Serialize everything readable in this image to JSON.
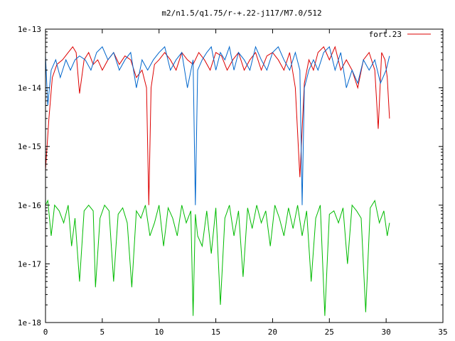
{
  "chart_data": {
    "type": "line",
    "title": "m2/n1.5/q1.75/r-+.22-j117/M7.0/512",
    "xlabel": "",
    "ylabel": "",
    "xlim": [
      0,
      35
    ],
    "ylim": [
      1e-18,
      1e-13
    ],
    "y_scale": "log",
    "x_ticks": [
      0,
      5,
      10,
      15,
      20,
      25,
      30,
      35
    ],
    "y_ticks": [
      {
        "value": 1e-18,
        "label": "1e-18"
      },
      {
        "value": 1e-17,
        "label": "1e-17"
      },
      {
        "value": 1e-16,
        "label": "1e-16"
      },
      {
        "value": 1e-15,
        "label": "1e-15"
      },
      {
        "value": 1e-14,
        "label": "1e-14"
      },
      {
        "value": 1e-13,
        "label": "1e-13"
      }
    ],
    "grid": false,
    "legend_position": "top-right",
    "series": [
      {
        "name": "fort.23",
        "color": "#dd0000",
        "x": [
          0.0,
          0.3,
          0.6,
          1.0,
          1.5,
          2.0,
          2.4,
          2.7,
          3.0,
          3.4,
          3.8,
          4.2,
          4.6,
          5.0,
          5.5,
          6.0,
          6.5,
          7.0,
          7.5,
          8.0,
          8.5,
          8.9,
          9.1,
          9.3,
          9.6,
          10.0,
          10.5,
          11.0,
          11.5,
          12.0,
          12.5,
          13.0,
          13.5,
          14.0,
          14.5,
          15.0,
          15.5,
          16.0,
          16.5,
          17.0,
          17.5,
          18.0,
          18.5,
          19.0,
          19.5,
          20.0,
          20.5,
          21.0,
          21.5,
          22.0,
          22.4,
          22.6,
          22.8,
          23.2,
          23.6,
          24.0,
          24.5,
          25.0,
          25.5,
          26.0,
          26.5,
          27.0,
          27.5,
          28.0,
          28.5,
          29.0,
          29.3,
          29.6,
          29.9,
          30.1,
          30.3
        ],
        "values": [
          4e-16,
          3e-15,
          1.5e-14,
          2.5e-14,
          3e-14,
          4e-14,
          5e-14,
          4e-14,
          8e-15,
          3e-14,
          4e-14,
          2.5e-14,
          3e-14,
          2e-14,
          3e-14,
          4e-14,
          2.5e-14,
          3.5e-14,
          3e-14,
          1.5e-14,
          2e-14,
          1e-14,
          1e-16,
          1e-14,
          2.5e-14,
          3e-14,
          4e-14,
          3e-14,
          2e-14,
          4e-14,
          3e-14,
          2.5e-14,
          4e-14,
          3e-14,
          2e-14,
          4e-14,
          3.5e-14,
          2e-14,
          3e-14,
          4e-14,
          2e-14,
          3e-14,
          4e-14,
          2e-14,
          3.5e-14,
          4e-14,
          3e-14,
          2e-14,
          4e-14,
          1e-14,
          3e-16,
          2e-15,
          1.2e-14,
          3e-14,
          2e-14,
          4e-14,
          5e-14,
          3e-14,
          5e-14,
          2e-14,
          3e-14,
          2e-14,
          1e-14,
          3e-14,
          4e-14,
          2e-14,
          2e-15,
          4e-14,
          3e-14,
          1.5e-14,
          3e-15
        ]
      },
      {
        "name": "",
        "color": "#0066cc",
        "x": [
          0.0,
          0.2,
          0.5,
          0.9,
          1.3,
          1.8,
          2.2,
          2.6,
          3.0,
          3.5,
          4.0,
          4.5,
          5.0,
          5.5,
          6.0,
          6.5,
          7.0,
          7.5,
          8.0,
          8.5,
          9.0,
          9.5,
          10.0,
          10.5,
          11.0,
          11.5,
          12.0,
          12.5,
          13.0,
          13.2,
          13.4,
          13.8,
          14.2,
          14.6,
          15.0,
          15.4,
          15.8,
          16.2,
          16.6,
          17.0,
          17.5,
          18.0,
          18.5,
          19.0,
          19.5,
          20.0,
          20.5,
          21.0,
          21.5,
          22.0,
          22.4,
          22.6,
          22.8,
          23.2,
          23.6,
          24.0,
          24.5,
          25.0,
          25.5,
          26.0,
          26.5,
          27.0,
          27.5,
          28.0,
          28.5,
          29.0,
          29.5,
          30.0,
          30.3
        ],
        "values": [
          3.5e-14,
          5e-15,
          2e-14,
          3e-14,
          1.5e-14,
          3e-14,
          2e-14,
          3e-14,
          3.5e-14,
          3e-14,
          2e-14,
          4e-14,
          5e-14,
          3e-14,
          4e-14,
          2e-14,
          3e-14,
          4e-14,
          1e-14,
          3e-14,
          2e-14,
          3e-14,
          4e-14,
          5e-14,
          2e-14,
          3e-14,
          4e-14,
          1e-14,
          3e-14,
          1e-16,
          2e-14,
          3e-14,
          4e-14,
          5e-14,
          2e-14,
          4e-14,
          3e-14,
          5e-14,
          2e-14,
          4e-14,
          3e-14,
          2e-14,
          5e-14,
          3e-14,
          2e-14,
          4e-14,
          5e-14,
          3e-14,
          2e-14,
          4e-14,
          2e-14,
          1e-16,
          1e-14,
          2e-14,
          3e-14,
          2e-14,
          4e-14,
          5e-14,
          2e-14,
          4e-14,
          1e-14,
          2e-14,
          1.2e-14,
          3e-14,
          2e-14,
          3e-14,
          1.2e-14,
          2e-14,
          3.5e-14
        ]
      },
      {
        "name": "",
        "color": "#00bb00",
        "x": [
          0.0,
          0.2,
          0.5,
          0.8,
          1.2,
          1.6,
          2.0,
          2.3,
          2.6,
          3.0,
          3.4,
          3.8,
          4.2,
          4.4,
          4.8,
          5.2,
          5.6,
          6.0,
          6.4,
          6.8,
          7.2,
          7.6,
          8.0,
          8.4,
          8.8,
          9.2,
          9.6,
          10.0,
          10.4,
          10.8,
          11.2,
          11.6,
          12.0,
          12.4,
          12.8,
          13.0,
          13.2,
          13.4,
          13.8,
          14.2,
          14.6,
          15.0,
          15.4,
          15.8,
          16.2,
          16.6,
          17.0,
          17.4,
          17.8,
          18.2,
          18.6,
          19.0,
          19.4,
          19.8,
          20.2,
          20.6,
          21.0,
          21.4,
          21.8,
          22.2,
          22.6,
          23.0,
          23.4,
          23.8,
          24.2,
          24.6,
          25.0,
          25.4,
          25.8,
          26.2,
          26.6,
          27.0,
          27.4,
          27.8,
          28.2,
          28.6,
          29.0,
          29.4,
          29.8,
          30.1,
          30.3
        ],
        "values": [
          1e-16,
          1.2e-16,
          3e-17,
          1e-16,
          8e-17,
          5e-17,
          1e-16,
          2e-17,
          6e-17,
          5e-18,
          8e-17,
          1e-16,
          8e-17,
          4e-18,
          6e-17,
          1e-16,
          8e-17,
          5e-18,
          7e-17,
          9e-17,
          5e-17,
          4e-18,
          8e-17,
          6e-17,
          1e-16,
          3e-17,
          5e-17,
          1e-16,
          2e-17,
          9e-17,
          6e-17,
          3e-17,
          1e-16,
          5e-17,
          8e-17,
          1.3e-18,
          7e-17,
          3e-17,
          2e-17,
          8e-17,
          1.5e-17,
          9e-17,
          2e-18,
          6e-17,
          1e-16,
          3e-17,
          8e-17,
          6e-18,
          9e-17,
          4e-17,
          1e-16,
          5e-17,
          8e-17,
          2e-17,
          1e-16,
          6e-17,
          3e-17,
          9e-17,
          4e-17,
          1e-16,
          3e-17,
          8e-17,
          5e-18,
          6e-17,
          1e-16,
          1.3e-18,
          7e-17,
          8e-17,
          5e-17,
          9e-17,
          1e-17,
          1e-16,
          8e-17,
          6e-17,
          1.5e-18,
          9e-17,
          1.2e-16,
          5e-17,
          8e-17,
          3e-17,
          5e-17
        ]
      }
    ]
  }
}
